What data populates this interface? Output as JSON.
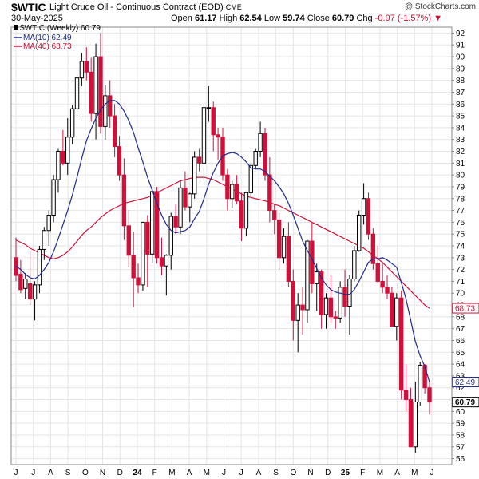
{
  "header": {
    "symbol": "$WTIC",
    "name": "Light Crude Oil - Continuous Contract (EOD)",
    "exchange": "CME",
    "credit": "@ StockCharts.com",
    "date": "30-May-2025",
    "open_label": "Open",
    "open": "61.17",
    "high_label": "High",
    "high": "62.54",
    "low_label": "Low",
    "low": "59.74",
    "close_label": "Close",
    "close": "60.79",
    "chg_label": "Chg",
    "chg": "-0.97 (-1.57%)"
  },
  "legend": {
    "price": "$WTIC (Weekly) 60.79",
    "ma10": "MA(10) 62.49",
    "ma40": "MA(40) 68.73"
  },
  "colors": {
    "up": "#000000",
    "down": "#d0103a",
    "ma10": "#1f2a8a",
    "ma40": "#d0103a",
    "grid": "#e6e6e6"
  },
  "chart_data": {
    "type": "candlestick",
    "ylim": [
      55.5,
      92.5
    ],
    "yticks": [
      56,
      57,
      58,
      59,
      60,
      61,
      62,
      63,
      64,
      65,
      66,
      67,
      68,
      69,
      70,
      71,
      72,
      73,
      74,
      75,
      76,
      77,
      78,
      79,
      80,
      81,
      82,
      83,
      84,
      85,
      86,
      87,
      88,
      89,
      90,
      91,
      92
    ],
    "xticks": [
      "J",
      "J",
      "A",
      "S",
      "O",
      "N",
      "D",
      "24",
      "F",
      "M",
      "A",
      "M",
      "J",
      "J",
      "A",
      "S",
      "O",
      "N",
      "D",
      "25",
      "F",
      "M",
      "A",
      "M",
      "J"
    ],
    "last_values": {
      "ma40": "68.73",
      "ma10": "62.49",
      "close": "60.79"
    },
    "candles": [
      [
        73.0,
        74.7,
        71.0,
        71.5
      ],
      [
        71.6,
        72.8,
        70.0,
        70.3
      ],
      [
        70.4,
        71.7,
        69.5,
        71.2
      ],
      [
        70.8,
        73.5,
        69.0,
        69.5
      ],
      [
        69.5,
        71.0,
        67.7,
        70.7
      ],
      [
        70.7,
        74.0,
        70.0,
        73.7
      ],
      [
        73.7,
        75.6,
        72.8,
        75.3
      ],
      [
        75.3,
        77.0,
        74.0,
        76.6
      ],
      [
        76.6,
        80.0,
        76.0,
        79.6
      ],
      [
        79.6,
        82.2,
        78.5,
        82.0
      ],
      [
        82.0,
        83.8,
        80.8,
        81.0
      ],
      [
        81.0,
        84.8,
        80.0,
        83.2
      ],
      [
        83.2,
        85.9,
        82.6,
        85.6
      ],
      [
        85.6,
        88.5,
        85.0,
        88.2
      ],
      [
        88.2,
        90.3,
        87.5,
        89.6
      ],
      [
        89.6,
        90.8,
        88.0,
        88.7
      ],
      [
        88.7,
        89.9,
        84.5,
        85.2
      ],
      [
        85.2,
        91.1,
        83.0,
        90.0
      ],
      [
        90.0,
        92.0,
        83.5,
        84.1
      ],
      [
        84.1,
        87.6,
        83.0,
        86.7
      ],
      [
        86.7,
        88.0,
        84.0,
        85.0
      ],
      [
        85.0,
        86.0,
        81.5,
        82.4
      ],
      [
        82.4,
        83.3,
        79.5,
        80.0
      ],
      [
        80.0,
        81.4,
        74.5,
        75.7
      ],
      [
        75.7,
        77.0,
        72.2,
        73.2
      ],
      [
        73.2,
        75.2,
        68.8,
        71.3
      ],
      [
        71.3,
        72.5,
        70.0,
        70.7
      ],
      [
        70.7,
        76.0,
        70.2,
        76.0
      ],
      [
        76.0,
        76.6,
        70.5,
        73.3
      ],
      [
        73.3,
        78.8,
        72.5,
        78.6
      ],
      [
        78.6,
        79.0,
        72.5,
        73.0
      ],
      [
        73.0,
        74.7,
        71.5,
        72.3
      ],
      [
        72.3,
        73.3,
        69.8,
        73.2
      ],
      [
        73.2,
        76.8,
        72.0,
        76.5
      ],
      [
        76.5,
        77.5,
        75.0,
        75.6
      ],
      [
        75.6,
        79.5,
        75.0,
        78.9
      ],
      [
        78.9,
        80.3,
        77.0,
        77.3
      ],
      [
        77.3,
        78.5,
        76.0,
        78.4
      ],
      [
        78.4,
        82.0,
        78.0,
        81.5
      ],
      [
        81.5,
        82.2,
        80.3,
        81.0
      ],
      [
        81.0,
        86.0,
        79.5,
        85.7
      ],
      [
        85.7,
        87.5,
        84.5,
        85.7
      ],
      [
        85.7,
        86.2,
        82.0,
        83.4
      ],
      [
        83.4,
        84.0,
        81.3,
        83.2
      ],
      [
        83.2,
        84.0,
        79.5,
        80.0
      ],
      [
        80.0,
        80.5,
        77.0,
        78.0
      ],
      [
        78.0,
        79.5,
        77.2,
        79.2
      ],
      [
        79.2,
        80.0,
        77.5,
        77.8
      ],
      [
        77.8,
        78.5,
        74.4,
        75.5
      ],
      [
        75.5,
        78.6,
        74.8,
        78.5
      ],
      [
        78.5,
        81.0,
        78.2,
        80.8
      ],
      [
        80.8,
        82.2,
        80.5,
        82.0
      ],
      [
        82.0,
        84.5,
        81.5,
        83.5
      ],
      [
        83.5,
        84.0,
        79.5,
        80.0
      ],
      [
        80.0,
        81.5,
        76.0,
        77.0
      ],
      [
        77.0,
        77.5,
        75.0,
        76.2
      ],
      [
        76.2,
        76.8,
        72.0,
        73.0
      ],
      [
        73.0,
        75.5,
        72.5,
        74.8
      ],
      [
        74.8,
        76.0,
        70.5,
        71.0
      ],
      [
        71.0,
        72.0,
        66.0,
        67.7
      ],
      [
        67.7,
        70.0,
        65.0,
        69.0
      ],
      [
        69.0,
        70.5,
        66.5,
        68.6
      ],
      [
        68.6,
        74.5,
        67.5,
        74.4
      ],
      [
        74.4,
        76.0,
        70.0,
        70.8
      ],
      [
        70.8,
        72.5,
        68.5,
        71.8
      ],
      [
        71.8,
        72.0,
        67.0,
        68.2
      ],
      [
        68.2,
        70.0,
        67.0,
        69.6
      ],
      [
        69.6,
        71.5,
        67.5,
        68.0
      ],
      [
        68.0,
        68.5,
        67.0,
        67.9
      ],
      [
        67.9,
        71.0,
        67.5,
        70.5
      ],
      [
        70.5,
        72.0,
        68.0,
        68.9
      ],
      [
        68.9,
        71.5,
        66.5,
        71.2
      ],
      [
        71.2,
        74.0,
        71.0,
        73.6
      ],
      [
        73.6,
        77.0,
        73.5,
        76.6
      ],
      [
        76.6,
        79.3,
        75.8,
        78.0
      ],
      [
        78.0,
        78.5,
        74.5,
        75.0
      ],
      [
        75.0,
        75.5,
        72.0,
        72.5
      ],
      [
        72.5,
        74.0,
        70.8,
        71.0
      ],
      [
        71.0,
        72.5,
        70.0,
        70.5
      ],
      [
        70.5,
        71.5,
        69.5,
        70.0
      ],
      [
        70.0,
        70.5,
        67.5,
        67.2
      ],
      [
        67.2,
        70.0,
        66.0,
        69.6
      ],
      [
        69.6,
        70.2,
        61.0,
        61.8
      ],
      [
        61.8,
        64.0,
        60.0,
        61.0
      ],
      [
        61.0,
        62.0,
        57.0,
        57.0
      ],
      [
        57.0,
        62.5,
        56.5,
        60.8
      ],
      [
        60.8,
        64.2,
        60.5,
        63.9
      ],
      [
        63.9,
        64.0,
        61.5,
        62.0
      ],
      [
        62.0,
        62.54,
        59.74,
        60.79
      ]
    ],
    "ma10": [
      72.3,
      72.0,
      71.6,
      71.3,
      71.2,
      71.5,
      72.0,
      72.6,
      73.5,
      74.6,
      75.8,
      77.0,
      78.3,
      79.8,
      81.4,
      82.9,
      83.9,
      84.8,
      85.5,
      86.0,
      86.3,
      86.3,
      86.0,
      85.4,
      84.6,
      83.6,
      82.3,
      81.1,
      79.8,
      78.7,
      77.6,
      76.6,
      75.8,
      75.3,
      75.1,
      75.2,
      75.3,
      75.6,
      76.3,
      76.9,
      78.0,
      79.2,
      80.2,
      81.0,
      81.6,
      81.8,
      81.9,
      81.8,
      81.5,
      81.1,
      80.6,
      80.5,
      80.5,
      80.3,
      79.9,
      79.5,
      79.0,
      78.4,
      77.6,
      76.6,
      75.5,
      74.4,
      73.6,
      72.9,
      72.1,
      71.3,
      70.7,
      70.3,
      70.1,
      70.0,
      69.9,
      69.9,
      70.3,
      71.0,
      71.8,
      72.6,
      72.9,
      72.9,
      73.0,
      72.8,
      72.5,
      72.2,
      70.9,
      69.5,
      67.7,
      65.9,
      64.7,
      63.8,
      62.49
    ],
    "ma40": [
      74.5,
      74.3,
      74.1,
      73.8,
      73.6,
      73.4,
      73.2,
      73.0,
      72.9,
      73.0,
      73.2,
      73.5,
      73.9,
      74.4,
      74.9,
      75.3,
      75.6,
      76.0,
      76.4,
      76.7,
      77.0,
      77.2,
      77.4,
      77.6,
      77.7,
      77.8,
      77.9,
      78.0,
      78.1,
      78.3,
      78.5,
      78.7,
      78.9,
      79.1,
      79.3,
      79.5,
      79.6,
      79.7,
      79.8,
      79.8,
      79.8,
      79.7,
      79.6,
      79.4,
      79.2,
      79.0,
      78.8,
      78.6,
      78.4,
      78.2,
      78.1,
      78.0,
      77.9,
      77.8,
      77.7,
      77.5,
      77.4,
      77.2,
      77.0,
      76.8,
      76.6,
      76.4,
      76.2,
      76.0,
      75.8,
      75.6,
      75.4,
      75.2,
      75.0,
      74.8,
      74.6,
      74.4,
      74.2,
      74.0,
      73.8,
      73.5,
      73.2,
      72.9,
      72.6,
      72.2,
      71.8,
      71.4,
      71.0,
      70.6,
      70.2,
      69.8,
      69.4,
      69.0,
      68.73
    ]
  }
}
